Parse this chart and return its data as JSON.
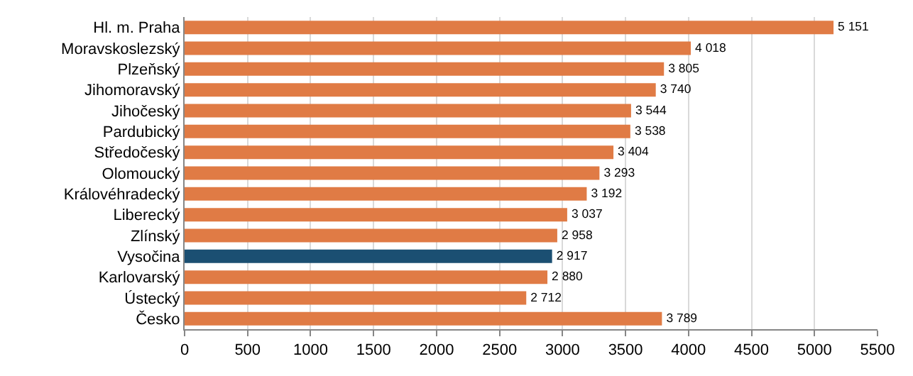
{
  "chart_data": {
    "type": "bar",
    "orientation": "horizontal",
    "categories": [
      "Hl. m. Praha",
      "Moravskoslezský",
      "Plzeňský",
      "Jihomoravský",
      "Jihočeský",
      "Pardubický",
      "Středočeský",
      "Olomoucký",
      "Královéhradecký",
      "Liberecký",
      "Zlínský",
      "Vysočina",
      "Karlovarský",
      "Ústecký",
      "Česko"
    ],
    "values": [
      5151,
      4018,
      3805,
      3740,
      3544,
      3538,
      3404,
      3293,
      3192,
      3037,
      2958,
      2917,
      2880,
      2712,
      3789
    ],
    "value_labels": [
      "5 151",
      "4 018",
      "3 805",
      "3 740",
      "3 544",
      "3 538",
      "3 404",
      "3 293",
      "3 192",
      "3 037",
      "2 958",
      "2 917",
      "2 880",
      "2 712",
      "3 789"
    ],
    "colors": [
      "#e07b45",
      "#e07b45",
      "#e07b45",
      "#e07b45",
      "#e07b45",
      "#e07b45",
      "#e07b45",
      "#e07b45",
      "#e07b45",
      "#e07b45",
      "#e07b45",
      "#1b4f72",
      "#e07b45",
      "#e07b45",
      "#e07b45"
    ],
    "xlim": [
      0,
      5500
    ],
    "xticks": [
      0,
      500,
      1000,
      1500,
      2000,
      2500,
      3000,
      3500,
      4000,
      4500,
      5000,
      5500
    ],
    "grid": "x"
  }
}
